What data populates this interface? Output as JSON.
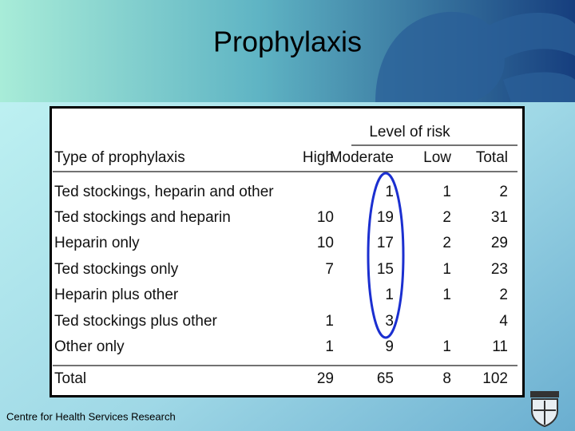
{
  "title": "Prophylaxis",
  "table": {
    "group_header": "Level of risk",
    "columns": [
      "Type of prophylaxis",
      "High",
      "Moderate",
      "Low",
      "Total"
    ],
    "rows": [
      [
        "Ted stockings, heparin and other",
        null,
        1,
        1,
        2
      ],
      [
        "Ted stockings and heparin",
        10,
        19,
        2,
        31
      ],
      [
        "Heparin only",
        10,
        17,
        2,
        29
      ],
      [
        "Ted stockings only",
        7,
        15,
        1,
        23
      ],
      [
        "Heparin plus other",
        null,
        1,
        1,
        2
      ],
      [
        "Ted stockings plus other",
        1,
        3,
        null,
        4
      ],
      [
        "Other only",
        1,
        9,
        1,
        11
      ]
    ],
    "total": [
      "Total",
      29,
      65,
      8,
      102
    ]
  },
  "footer": "Centre for Health Services Research"
}
